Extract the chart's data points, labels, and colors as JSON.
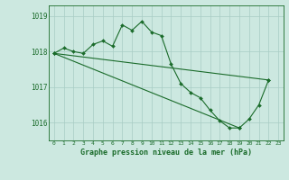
{
  "title": "Graphe pression niveau de la mer (hPa)",
  "background_color": "#cce8e0",
  "line_color": "#1a6b2a",
  "grid_color": "#a8ccc4",
  "xlim": [
    -0.5,
    23.5
  ],
  "ylim": [
    1015.5,
    1019.3
  ],
  "yticks": [
    1016,
    1017,
    1018,
    1019
  ],
  "xticks": [
    0,
    1,
    2,
    3,
    4,
    5,
    6,
    7,
    8,
    9,
    10,
    11,
    12,
    13,
    14,
    15,
    16,
    17,
    18,
    19,
    20,
    21,
    22,
    23
  ],
  "series1_x": [
    0,
    1,
    2,
    3,
    4,
    5,
    6,
    7,
    8,
    9,
    10,
    11,
    12,
    13,
    14,
    15,
    16,
    17,
    18,
    19,
    20,
    21,
    22
  ],
  "series1_y": [
    1017.95,
    1018.1,
    1018.0,
    1017.95,
    1018.2,
    1018.3,
    1018.15,
    1018.75,
    1018.6,
    1018.85,
    1018.55,
    1018.45,
    1017.65,
    1017.1,
    1016.85,
    1016.7,
    1016.35,
    1016.05,
    1015.85,
    1015.85,
    1016.1,
    1016.5,
    1017.2
  ],
  "series2_x": [
    0,
    22
  ],
  "series2_y": [
    1017.95,
    1017.2
  ],
  "series3_x": [
    0,
    19
  ],
  "series3_y": [
    1017.95,
    1015.85
  ]
}
